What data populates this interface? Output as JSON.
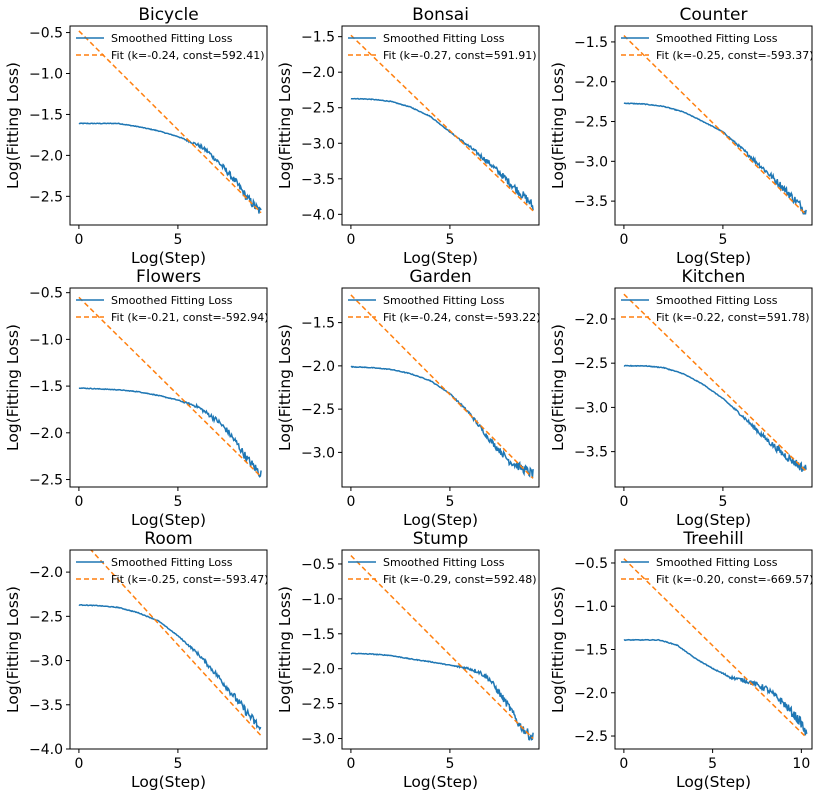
{
  "figure": {
    "description_none": ""
  },
  "colors": {
    "smoothed": "#1f77b4",
    "fit": "#ff7f0e",
    "axis": "#000000"
  },
  "chart_data": [
    {
      "type": "line",
      "title": "Bicycle",
      "xlabel": "Log(Step)",
      "ylabel": "Log(Fitting Loss)",
      "xlim": [
        -0.45,
        9.5
      ],
      "ylim": [
        -2.85,
        -0.42
      ],
      "xticks": [
        0,
        5
      ],
      "yticks": [
        -0.5,
        -1.0,
        -1.5,
        -2.0,
        -2.5
      ],
      "yticklabels": [
        "−0.5",
        "−1.0",
        "−1.5",
        "−2.0",
        "−2.5"
      ],
      "legend": [
        "Smoothed Fitting Loss",
        "Fit (k=-0.24, const=592.41)"
      ],
      "series": [
        {
          "name": "Smoothed Fitting Loss",
          "x": [
            0,
            1,
            2,
            3,
            4,
            5,
            6,
            6.5,
            7,
            7.5,
            8,
            8.5,
            9,
            9.2
          ],
          "y": [
            -1.61,
            -1.61,
            -1.61,
            -1.65,
            -1.7,
            -1.77,
            -1.87,
            -1.95,
            -2.07,
            -2.2,
            -2.35,
            -2.52,
            -2.65,
            -2.7
          ]
        },
        {
          "name": "Fit (k=-0.24, const=592.41)",
          "x": [
            0,
            9.2
          ],
          "y": [
            -0.48,
            -2.7
          ]
        }
      ]
    },
    {
      "type": "line",
      "title": "Bonsai",
      "xlabel": "Log(Step)",
      "ylabel": "Log(Fitting Loss)",
      "xlim": [
        -0.45,
        9.5
      ],
      "ylim": [
        -4.15,
        -1.35
      ],
      "xticks": [
        0,
        5
      ],
      "yticks": [
        -1.5,
        -2.0,
        -2.5,
        -3.0,
        -3.5,
        -4.0
      ],
      "yticklabels": [
        "−1.5",
        "−2.0",
        "−2.5",
        "−3.0",
        "−3.5",
        "−4.0"
      ],
      "legend": [
        "Smoothed Fitting Loss",
        "Fit (k=-0.27, const=591.91)"
      ],
      "series": [
        {
          "name": "Smoothed Fitting Loss",
          "x": [
            0,
            1,
            2,
            3,
            4,
            5,
            6,
            7,
            8,
            9,
            9.2
          ],
          "y": [
            -2.37,
            -2.38,
            -2.41,
            -2.49,
            -2.62,
            -2.84,
            -3.05,
            -3.28,
            -3.55,
            -3.82,
            -3.9
          ]
        },
        {
          "name": "Fit (k=-0.27, const=591.91)",
          "x": [
            0,
            9.2
          ],
          "y": [
            -1.48,
            -3.95
          ]
        }
      ]
    },
    {
      "type": "line",
      "title": "Counter",
      "xlabel": "Log(Step)",
      "ylabel": "Log(Fitting Loss)",
      "xlim": [
        -0.45,
        9.5
      ],
      "ylim": [
        -3.8,
        -1.3
      ],
      "xticks": [
        0,
        5
      ],
      "yticks": [
        -1.5,
        -2.0,
        -2.5,
        -3.0,
        -3.5
      ],
      "yticklabels": [
        "−1.5",
        "−2.0",
        "−2.5",
        "−3.0",
        "−3.5"
      ],
      "legend": [
        "Smoothed Fitting Loss",
        "Fit (k=-0.25, const=-593.37)"
      ],
      "series": [
        {
          "name": "Smoothed Fitting Loss",
          "x": [
            0,
            1,
            2,
            3,
            4,
            5,
            6,
            7,
            8,
            9,
            9.2
          ],
          "y": [
            -2.27,
            -2.28,
            -2.31,
            -2.38,
            -2.5,
            -2.63,
            -2.85,
            -3.08,
            -3.32,
            -3.58,
            -3.64
          ]
        },
        {
          "name": "Fit (k=-0.25, const=-593.37)",
          "x": [
            0,
            9.2
          ],
          "y": [
            -1.42,
            -3.67
          ]
        }
      ]
    },
    {
      "type": "line",
      "title": "Flowers",
      "xlabel": "Log(Step)",
      "ylabel": "Log(Fitting Loss)",
      "xlim": [
        -0.45,
        9.5
      ],
      "ylim": [
        -2.58,
        -0.45
      ],
      "xticks": [
        0,
        5
      ],
      "yticks": [
        -0.5,
        -1.0,
        -1.5,
        -2.0,
        -2.5
      ],
      "yticklabels": [
        "−0.5",
        "−1.0",
        "−1.5",
        "−2.0",
        "−2.5"
      ],
      "legend": [
        "Smoothed Fitting Loss",
        "Fit (k=-0.21, const=-592.94)"
      ],
      "series": [
        {
          "name": "Smoothed Fitting Loss",
          "x": [
            0,
            1,
            2,
            3,
            4,
            5,
            6,
            7,
            7.5,
            8,
            8.5,
            9,
            9.2
          ],
          "y": [
            -1.52,
            -1.53,
            -1.54,
            -1.56,
            -1.6,
            -1.65,
            -1.72,
            -1.87,
            -1.98,
            -2.12,
            -2.28,
            -2.4,
            -2.44
          ]
        },
        {
          "name": "Fit (k=-0.21, const=-592.94)",
          "x": [
            0,
            9.2
          ],
          "y": [
            -0.55,
            -2.47
          ]
        }
      ]
    },
    {
      "type": "line",
      "title": "Garden",
      "xlabel": "Log(Step)",
      "ylabel": "Log(Fitting Loss)",
      "xlim": [
        -0.45,
        9.5
      ],
      "ylim": [
        -3.4,
        -1.1
      ],
      "xticks": [
        0,
        5
      ],
      "yticks": [
        -1.5,
        -2.0,
        -2.5,
        -3.0
      ],
      "yticklabels": [
        "−1.5",
        "−2.0",
        "−2.5",
        "−3.0"
      ],
      "legend": [
        "Smoothed Fitting Loss",
        "Fit (k=-0.24, const=-593.22)"
      ],
      "series": [
        {
          "name": "Smoothed Fitting Loss",
          "x": [
            0,
            1,
            2,
            3,
            4,
            5,
            6,
            7,
            8,
            9,
            9.2
          ],
          "y": [
            -2.01,
            -2.02,
            -2.04,
            -2.09,
            -2.17,
            -2.32,
            -2.55,
            -2.85,
            -3.1,
            -3.23,
            -3.25
          ]
        },
        {
          "name": "Fit (k=-0.24, const=-593.22)",
          "x": [
            0,
            9.2
          ],
          "y": [
            -1.18,
            -3.3
          ]
        }
      ]
    },
    {
      "type": "line",
      "title": "Kitchen",
      "xlabel": "Log(Step)",
      "ylabel": "Log(Fitting Loss)",
      "xlim": [
        -0.45,
        9.5
      ],
      "ylim": [
        -3.9,
        -1.65
      ],
      "xticks": [
        0,
        5
      ],
      "yticks": [
        -2.0,
        -2.5,
        -3.0,
        -3.5
      ],
      "yticklabels": [
        "−2.0",
        "−2.5",
        "−3.0",
        "−3.5"
      ],
      "legend": [
        "Smoothed Fitting Loss",
        "Fit (k=-0.22, const=591.78)"
      ],
      "series": [
        {
          "name": "Smoothed Fitting Loss",
          "x": [
            0,
            1,
            2,
            3,
            4,
            5,
            6,
            7,
            8,
            9,
            9.2
          ],
          "y": [
            -2.53,
            -2.53,
            -2.55,
            -2.62,
            -2.74,
            -2.9,
            -3.1,
            -3.32,
            -3.52,
            -3.68,
            -3.7
          ]
        },
        {
          "name": "Fit (k=-0.22, const=591.78)",
          "x": [
            0,
            9.2
          ],
          "y": [
            -1.72,
            -3.72
          ]
        }
      ]
    },
    {
      "type": "line",
      "title": "Room",
      "xlabel": "Log(Step)",
      "ylabel": "Log(Fitting Loss)",
      "xlim": [
        -0.45,
        9.5
      ],
      "ylim": [
        -4.0,
        -1.75
      ],
      "xticks": [
        0,
        5
      ],
      "yticks": [
        -2.0,
        -2.5,
        -3.0,
        -3.5,
        -4.0
      ],
      "yticklabels": [
        "−2.0",
        "−2.5",
        "−3.0",
        "−3.5",
        "−4.0"
      ],
      "legend": [
        "Smoothed Fitting Loss",
        "Fit (k=-0.25, const=-593.47)"
      ],
      "series": [
        {
          "name": "Smoothed Fitting Loss",
          "x": [
            0,
            1,
            2,
            3,
            4,
            5,
            6,
            7,
            8,
            9,
            9.2
          ],
          "y": [
            -2.37,
            -2.38,
            -2.4,
            -2.46,
            -2.55,
            -2.72,
            -2.92,
            -3.17,
            -3.45,
            -3.73,
            -3.8
          ]
        },
        {
          "name": "Fit (k=-0.25, const=-593.47)",
          "x": [
            0,
            9.2
          ],
          "y": [
            -1.6,
            -3.85
          ]
        }
      ]
    },
    {
      "type": "line",
      "title": "Stump",
      "xlabel": "Log(Step)",
      "ylabel": "Log(Fitting Loss)",
      "xlim": [
        -0.45,
        9.5
      ],
      "ylim": [
        -3.15,
        -0.3
      ],
      "xticks": [
        0,
        5
      ],
      "yticks": [
        -0.5,
        -1.0,
        -1.5,
        -2.0,
        -2.5,
        -3.0
      ],
      "yticklabels": [
        "−0.5",
        "−1.0",
        "−1.5",
        "−2.0",
        "−2.5",
        "−3.0"
      ],
      "legend": [
        "Smoothed Fitting Loss",
        "Fit (k=-0.29, const=592.48)"
      ],
      "series": [
        {
          "name": "Smoothed Fitting Loss",
          "x": [
            0,
            1,
            2,
            3,
            4,
            5,
            6,
            6.5,
            7,
            7.5,
            8,
            8.5,
            9,
            9.2
          ],
          "y": [
            -1.78,
            -1.79,
            -1.81,
            -1.86,
            -1.9,
            -1.95,
            -2.0,
            -2.05,
            -2.15,
            -2.35,
            -2.55,
            -2.8,
            -2.95,
            -2.98
          ]
        },
        {
          "name": "Fit (k=-0.29, const=592.48)",
          "x": [
            0,
            9.2
          ],
          "y": [
            -0.38,
            -3.0
          ]
        }
      ]
    },
    {
      "type": "line",
      "title": "Treehill",
      "xlabel": "Log(Step)",
      "ylabel": "Log(Fitting Loss)",
      "xlim": [
        -0.5,
        10.6
      ],
      "ylim": [
        -2.65,
        -0.35
      ],
      "xticks": [
        0,
        5,
        10
      ],
      "yticks": [
        -0.5,
        -1.0,
        -1.5,
        -2.0,
        -2.5
      ],
      "yticklabels": [
        "−0.5",
        "−1.0",
        "−1.5",
        "−2.0",
        "−2.5"
      ],
      "legend": [
        "Smoothed Fitting Loss",
        "Fit (k=-0.20, const=-669.57)"
      ],
      "series": [
        {
          "name": "Smoothed Fitting Loss",
          "x": [
            0,
            1,
            2,
            3,
            4,
            5,
            6,
            7,
            8,
            9,
            10,
            10.3
          ],
          "y": [
            -1.39,
            -1.39,
            -1.39,
            -1.45,
            -1.6,
            -1.72,
            -1.82,
            -1.87,
            -1.95,
            -2.12,
            -2.35,
            -2.5
          ]
        },
        {
          "name": "Fit (k=-0.20, const=-669.57)",
          "x": [
            0,
            10.3
          ],
          "y": [
            -0.45,
            -2.52
          ]
        }
      ]
    }
  ]
}
